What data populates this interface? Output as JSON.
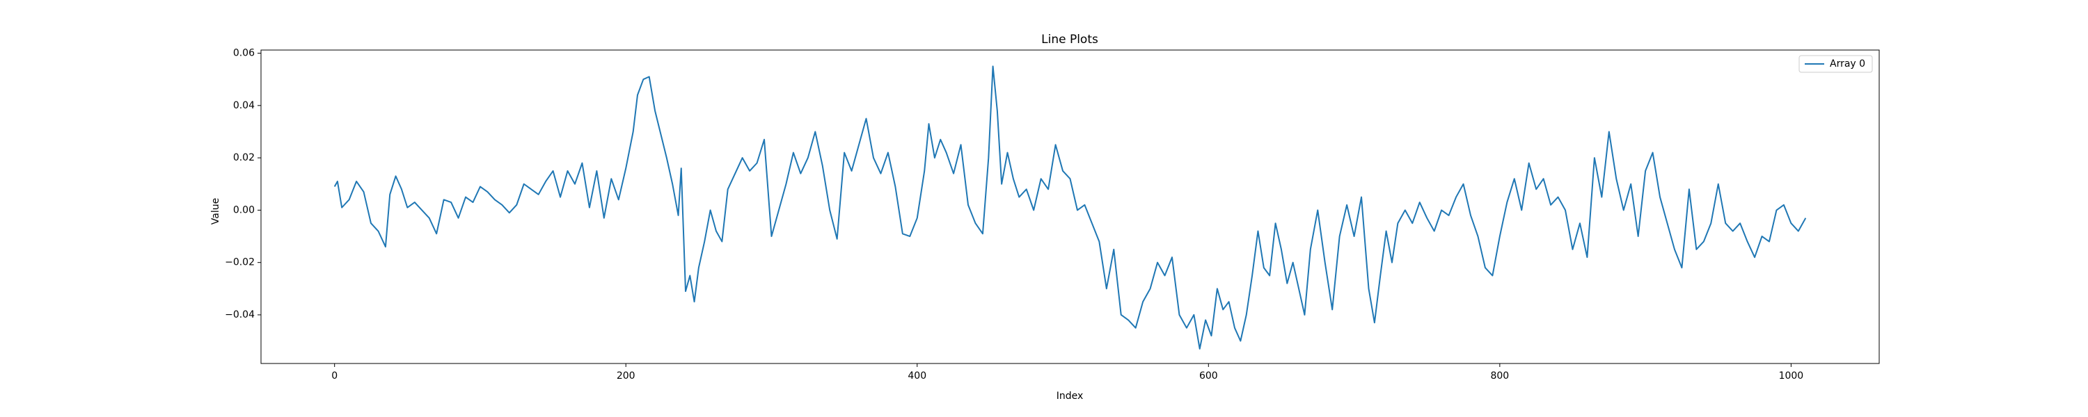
{
  "chart_data": {
    "type": "line",
    "title": "Line Plots",
    "x_label": "Index",
    "y_label": "Value",
    "x": [
      0,
      2,
      5,
      10,
      15,
      20,
      25,
      30,
      35,
      38,
      42,
      46,
      50,
      55,
      60,
      65,
      70,
      75,
      80,
      85,
      90,
      95,
      100,
      105,
      110,
      115,
      120,
      125,
      130,
      135,
      140,
      145,
      150,
      155,
      160,
      165,
      170,
      175,
      180,
      185,
      190,
      195,
      200,
      205,
      208,
      212,
      216,
      220,
      224,
      228,
      232,
      236,
      238,
      241,
      244,
      247,
      250,
      254,
      258,
      262,
      266,
      270,
      275,
      280,
      285,
      290,
      295,
      300,
      305,
      310,
      315,
      320,
      325,
      330,
      335,
      340,
      345,
      350,
      355,
      360,
      365,
      370,
      375,
      380,
      385,
      390,
      395,
      400,
      405,
      408,
      412,
      416,
      420,
      425,
      430,
      435,
      440,
      445,
      449,
      452,
      455,
      458,
      462,
      466,
      470,
      475,
      480,
      485,
      490,
      495,
      500,
      505,
      510,
      515,
      520,
      525,
      530,
      535,
      540,
      545,
      550,
      555,
      560,
      565,
      570,
      575,
      580,
      585,
      590,
      594,
      598,
      602,
      606,
      610,
      614,
      618,
      622,
      626,
      630,
      634,
      638,
      642,
      646,
      650,
      654,
      658,
      662,
      666,
      670,
      675,
      680,
      685,
      690,
      695,
      700,
      705,
      710,
      714,
      718,
      722,
      726,
      730,
      735,
      740,
      745,
      750,
      755,
      760,
      765,
      770,
      775,
      780,
      785,
      790,
      795,
      800,
      805,
      810,
      815,
      820,
      825,
      830,
      835,
      840,
      845,
      850,
      855,
      860,
      865,
      870,
      875,
      880,
      885,
      890,
      895,
      900,
      905,
      910,
      915,
      920,
      925,
      930,
      935,
      940,
      945,
      950,
      955,
      960,
      965,
      970,
      975,
      980,
      985,
      990,
      995,
      1000,
      1005,
      1010
    ],
    "series": [
      {
        "name": "Array 0",
        "color": "#1f77b4",
        "values": [
          0.009,
          0.011,
          0.001,
          0.004,
          0.011,
          0.007,
          -0.005,
          -0.008,
          -0.014,
          0.006,
          0.013,
          0.008,
          0.001,
          0.003,
          0.0,
          -0.003,
          -0.009,
          0.004,
          0.003,
          -0.003,
          0.005,
          0.003,
          0.009,
          0.007,
          0.004,
          0.002,
          -0.001,
          0.002,
          0.01,
          0.008,
          0.006,
          0.011,
          0.015,
          0.005,
          0.015,
          0.01,
          0.018,
          0.001,
          0.015,
          -0.003,
          0.012,
          0.004,
          0.016,
          0.03,
          0.044,
          0.05,
          0.051,
          0.038,
          0.029,
          0.02,
          0.01,
          -0.002,
          0.016,
          -0.031,
          -0.025,
          -0.035,
          -0.022,
          -0.012,
          0.0,
          -0.008,
          -0.012,
          0.008,
          0.014,
          0.02,
          0.015,
          0.018,
          0.027,
          -0.01,
          0.0,
          0.01,
          0.022,
          0.014,
          0.02,
          0.03,
          0.017,
          0.0,
          -0.011,
          0.022,
          0.015,
          0.025,
          0.035,
          0.02,
          0.014,
          0.022,
          0.009,
          -0.009,
          -0.01,
          -0.003,
          0.015,
          0.033,
          0.02,
          0.027,
          0.022,
          0.014,
          0.025,
          0.002,
          -0.005,
          -0.009,
          0.02,
          0.055,
          0.038,
          0.01,
          0.022,
          0.012,
          0.005,
          0.008,
          0.0,
          0.012,
          0.008,
          0.025,
          0.015,
          0.012,
          0.0,
          0.002,
          -0.005,
          -0.012,
          -0.03,
          -0.015,
          -0.04,
          -0.042,
          -0.045,
          -0.035,
          -0.03,
          -0.02,
          -0.025,
          -0.018,
          -0.04,
          -0.045,
          -0.04,
          -0.053,
          -0.042,
          -0.048,
          -0.03,
          -0.038,
          -0.035,
          -0.045,
          -0.05,
          -0.04,
          -0.025,
          -0.008,
          -0.022,
          -0.025,
          -0.005,
          -0.015,
          -0.028,
          -0.02,
          -0.03,
          -0.04,
          -0.015,
          0.0,
          -0.02,
          -0.038,
          -0.01,
          0.002,
          -0.01,
          0.005,
          -0.03,
          -0.043,
          -0.025,
          -0.008,
          -0.02,
          -0.005,
          0.0,
          -0.005,
          0.003,
          -0.003,
          -0.008,
          0.0,
          -0.002,
          0.005,
          0.01,
          -0.002,
          -0.01,
          -0.022,
          -0.025,
          -0.01,
          0.003,
          0.012,
          0.0,
          0.018,
          0.008,
          0.012,
          0.002,
          0.005,
          0.0,
          -0.015,
          -0.005,
          -0.018,
          0.02,
          0.005,
          0.03,
          0.012,
          0.0,
          0.01,
          -0.01,
          0.015,
          0.022,
          0.005,
          -0.005,
          -0.015,
          -0.022,
          0.008,
          -0.015,
          -0.012,
          -0.005,
          0.01,
          -0.005,
          -0.008,
          -0.005,
          -0.012,
          -0.018,
          -0.01,
          -0.012,
          0.0,
          0.002,
          -0.005,
          -0.008,
          -0.003
        ]
      }
    ],
    "xlim": [
      -50.5,
      1060.5
    ],
    "ylim": [
      -0.0586,
      0.0612
    ],
    "xticks": [
      0,
      200,
      400,
      600,
      800,
      1000
    ],
    "yticks": [
      {
        "value": -0.04,
        "label": "−0.04"
      },
      {
        "value": -0.02,
        "label": "−0.02"
      },
      {
        "value": 0,
        "label": "0.00"
      },
      0.02,
      0.04,
      0.06
    ],
    "legend": "upper right"
  }
}
